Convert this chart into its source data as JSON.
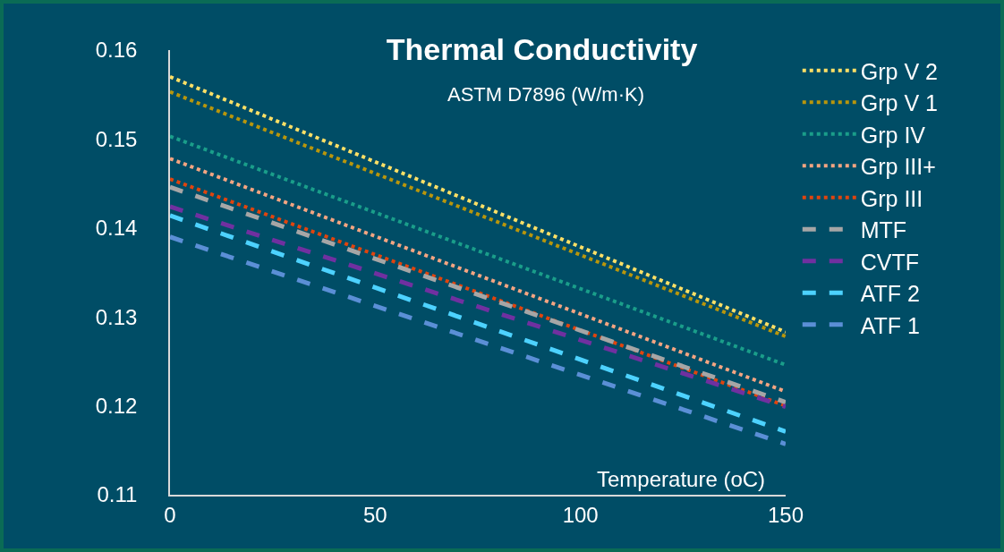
{
  "chart_data": {
    "type": "line",
    "title": "Thermal Conductivity",
    "subtitle": "ASTM D7896 (W/m·K)",
    "xlabel": "Temperature (oC)",
    "x": [
      0,
      150
    ],
    "xlim": [
      0,
      150
    ],
    "xticks": [
      0,
      50,
      100,
      150
    ],
    "ylim": [
      0.11,
      0.16
    ],
    "yticks": [
      0.11,
      0.12,
      0.13,
      0.14,
      0.15,
      0.16
    ],
    "grid": false,
    "legend": "right",
    "marker": "none",
    "series": [
      {
        "name": "Grp V 2",
        "color": "#ffe066",
        "line_style": "dotted",
        "values": [
          0.157,
          0.1283
        ]
      },
      {
        "name": "Grp V 1",
        "color": "#b8960c",
        "line_style": "dotted",
        "values": [
          0.1553,
          0.1278
        ]
      },
      {
        "name": "Grp IV",
        "color": "#1a9e8a",
        "line_style": "dotted",
        "values": [
          0.1503,
          0.1246
        ]
      },
      {
        "name": "Grp III+",
        "color": "#f4a582",
        "line_style": "dotted",
        "values": [
          0.1478,
          0.1216
        ]
      },
      {
        "name": "Grp III",
        "color": "#e0440e",
        "line_style": "dotted",
        "values": [
          0.1455,
          0.12
        ]
      },
      {
        "name": "MTF",
        "color": "#a6a6a6",
        "line_style": "dashed",
        "values": [
          0.1446,
          0.1204
        ]
      },
      {
        "name": "CVTF",
        "color": "#7030a0",
        "line_style": "dashed",
        "values": [
          0.1424,
          0.1199
        ]
      },
      {
        "name": "ATF 2",
        "color": "#4dd2ff",
        "line_style": "dashed",
        "values": [
          0.1414,
          0.1171
        ]
      },
      {
        "name": "ATF 1",
        "color": "#5b8fd6",
        "line_style": "dashed",
        "values": [
          0.139,
          0.1157
        ]
      }
    ]
  }
}
